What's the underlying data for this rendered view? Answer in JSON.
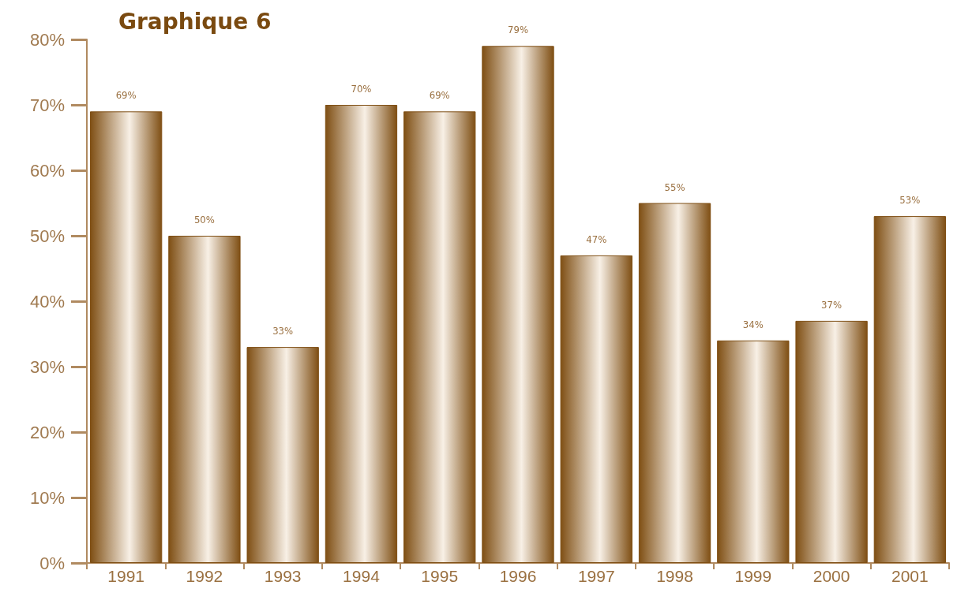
{
  "chart_data": {
    "type": "bar",
    "title": "Graphique 6",
    "categories": [
      "1991",
      "1992",
      "1993",
      "1994",
      "1995",
      "1996",
      "1997",
      "1998",
      "1999",
      "2000",
      "2001"
    ],
    "values": [
      69,
      50,
      33,
      70,
      69,
      79,
      47,
      55,
      34,
      37,
      53
    ],
    "value_labels": [
      "69%",
      "50%",
      "33%",
      "70%",
      "69%",
      "79%",
      "47%",
      "55%",
      "34%",
      "37%",
      "53%"
    ],
    "color": "#7f4f14",
    "ylim": [
      0,
      80
    ],
    "yticks": [
      {
        "value": 0,
        "label": "0%"
      },
      {
        "value": 10,
        "label": "10%"
      },
      {
        "value": 20,
        "label": "20%"
      },
      {
        "value": 30,
        "label": "30%"
      },
      {
        "value": 40,
        "label": "40%"
      },
      {
        "value": 50,
        "label": "50%"
      },
      {
        "value": 60,
        "label": "60%"
      },
      {
        "value": 70,
        "label": "70%"
      },
      {
        "value": 80,
        "label": "80%"
      }
    ],
    "grid": false
  }
}
